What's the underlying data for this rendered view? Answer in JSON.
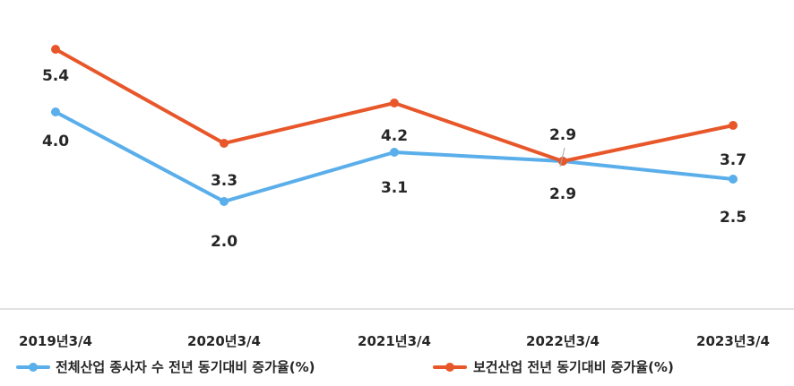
{
  "chart_data": {
    "type": "line",
    "title": "",
    "xlabel": "",
    "ylabel": "",
    "categories": [
      "2019년3/4",
      "2020년3/4",
      "2021년3/4",
      "2022년3/4",
      "2023년3/4"
    ],
    "series": [
      {
        "name": "전체산업 종사자 수 전년 동기대비 증가율(%)",
        "color": "#5aaeea",
        "values": [
          4.0,
          2.0,
          3.1,
          2.9,
          2.5
        ],
        "labels": [
          "4.0",
          "2.0",
          "3.1",
          "2.9",
          "2.5"
        ]
      },
      {
        "name": "보건산업 전년 동기대비 증가율(%)",
        "color": "#e8572a",
        "values": [
          5.4,
          3.3,
          4.2,
          2.9,
          3.7
        ],
        "labels": [
          "5.4",
          "3.3",
          "4.2",
          "2.9",
          "3.7"
        ]
      }
    ],
    "ylim": [
      0,
      6.5
    ],
    "grid": false,
    "legend": "bottom"
  }
}
